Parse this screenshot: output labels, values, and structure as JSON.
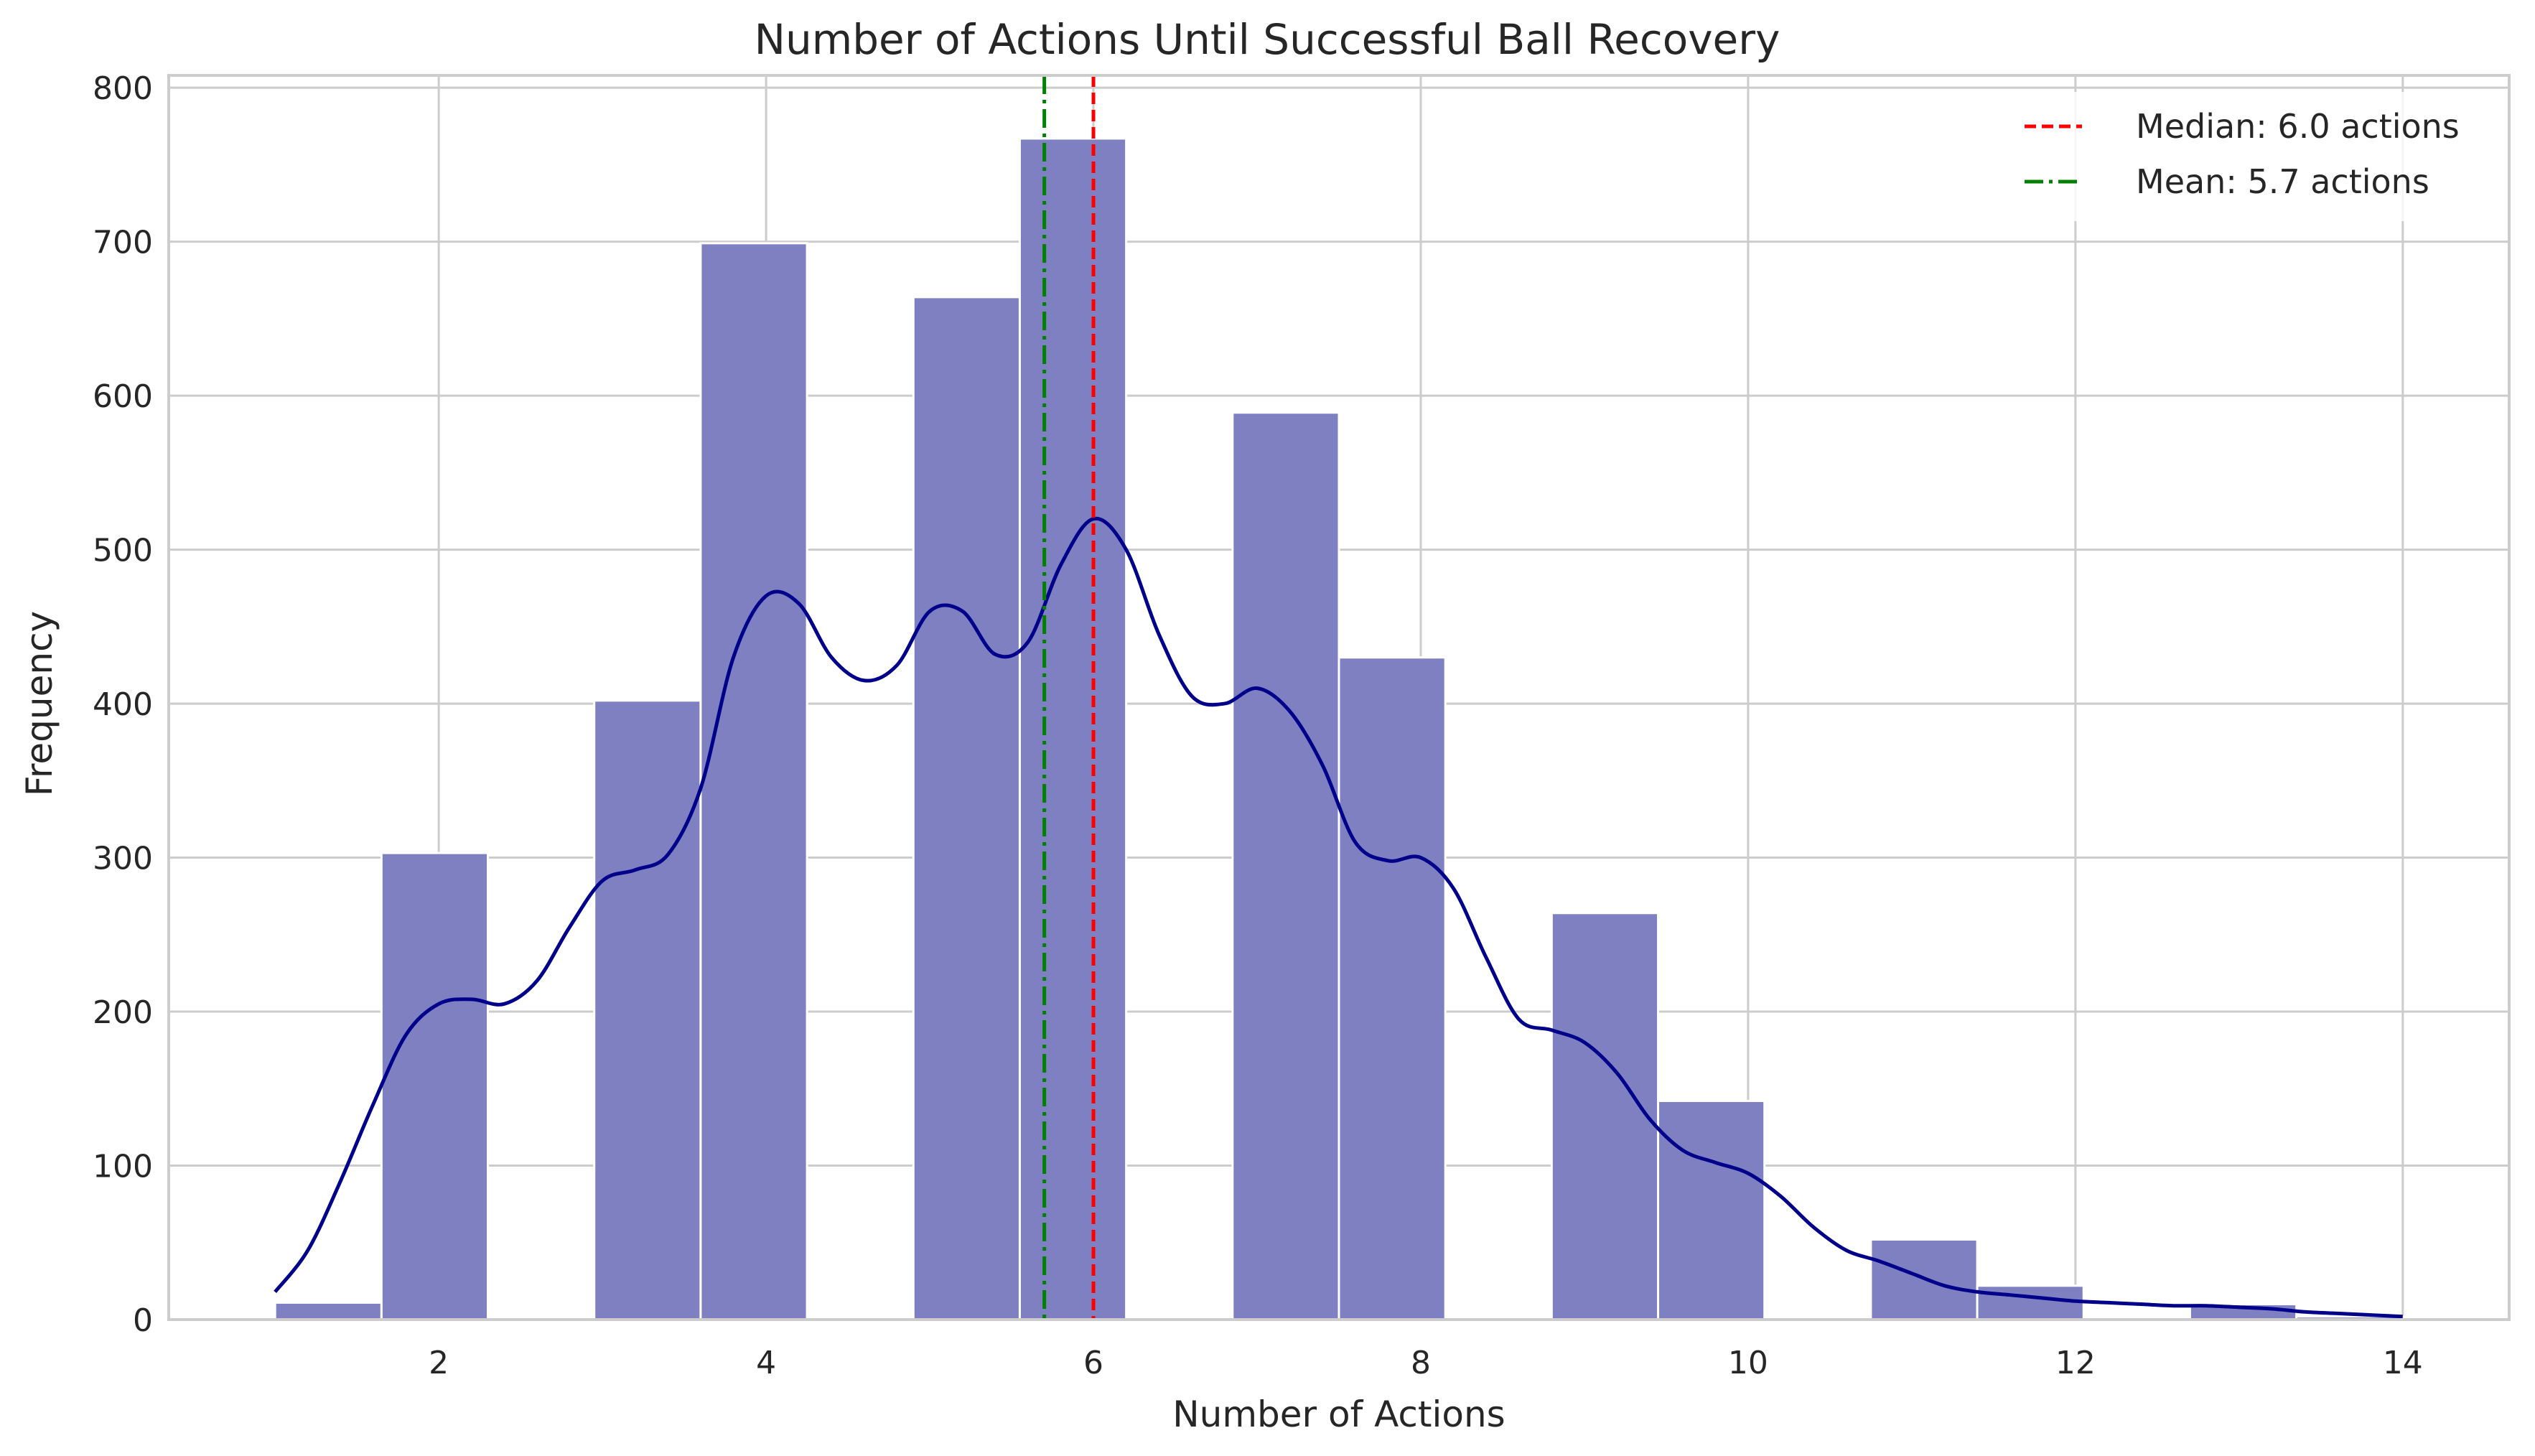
{
  "chart_data": {
    "type": "bar",
    "title": "Number of Actions Until Successful Ball Recovery",
    "xlabel": "Number of Actions",
    "ylabel": "Frequency",
    "xlim": [
      0.35,
      14.65
    ],
    "ylim": [
      0,
      808
    ],
    "xticks": [
      2,
      4,
      6,
      8,
      10,
      12,
      14
    ],
    "yticks": [
      0,
      100,
      200,
      300,
      400,
      500,
      600,
      700,
      800
    ],
    "grid": true,
    "legend_position": "top-right",
    "bin_width": 0.65,
    "bins": [
      {
        "start": 1.0,
        "value": 11
      },
      {
        "start": 1.65,
        "value": 303
      },
      {
        "start": 2.3,
        "value": 0
      },
      {
        "start": 2.95,
        "value": 402
      },
      {
        "start": 3.6,
        "value": 699
      },
      {
        "start": 4.25,
        "value": 0
      },
      {
        "start": 4.9,
        "value": 664
      },
      {
        "start": 5.55,
        "value": 767
      },
      {
        "start": 6.2,
        "value": 0
      },
      {
        "start": 6.85,
        "value": 589
      },
      {
        "start": 7.5,
        "value": 430
      },
      {
        "start": 8.15,
        "value": 0
      },
      {
        "start": 8.8,
        "value": 264
      },
      {
        "start": 9.45,
        "value": 142
      },
      {
        "start": 10.1,
        "value": 0
      },
      {
        "start": 10.75,
        "value": 52
      },
      {
        "start": 11.4,
        "value": 22
      },
      {
        "start": 12.05,
        "value": 0
      },
      {
        "start": 12.7,
        "value": 10
      },
      {
        "start": 13.35,
        "value": 2
      }
    ],
    "kde": {
      "x": [
        1.0,
        1.2,
        1.4,
        1.6,
        1.8,
        2.0,
        2.2,
        2.4,
        2.6,
        2.8,
        3.0,
        3.2,
        3.4,
        3.6,
        3.8,
        4.0,
        4.2,
        4.4,
        4.6,
        4.8,
        5.0,
        5.2,
        5.4,
        5.6,
        5.8,
        6.0,
        6.2,
        6.4,
        6.6,
        6.8,
        7.0,
        7.2,
        7.4,
        7.6,
        7.8,
        8.0,
        8.2,
        8.4,
        8.6,
        8.8,
        9.0,
        9.2,
        9.4,
        9.6,
        9.8,
        10.0,
        10.2,
        10.4,
        10.6,
        10.8,
        11.0,
        11.2,
        11.4,
        11.6,
        11.8,
        12.0,
        12.2,
        12.4,
        12.6,
        12.8,
        13.0,
        13.2,
        13.4,
        13.6,
        13.8,
        14.0
      ],
      "y": [
        18,
        45,
        90,
        140,
        185,
        205,
        208,
        205,
        220,
        255,
        285,
        292,
        302,
        345,
        430,
        470,
        465,
        430,
        415,
        425,
        460,
        460,
        432,
        440,
        490,
        520,
        500,
        445,
        405,
        400,
        410,
        395,
        360,
        310,
        298,
        300,
        280,
        235,
        195,
        188,
        180,
        160,
        130,
        110,
        102,
        95,
        80,
        60,
        45,
        38,
        30,
        22,
        18,
        16,
        14,
        12,
        11,
        10,
        9,
        9,
        8,
        7,
        5,
        4,
        3,
        2
      ]
    },
    "reference_lines": [
      {
        "name": "Median: 6.0 actions",
        "x": 6.0,
        "color": "#ff0000",
        "style": "dashed"
      },
      {
        "name": "Mean: 5.7 actions",
        "x": 5.7,
        "color": "#008000",
        "style": "dashdot"
      }
    ],
    "colors": {
      "bar_fill": "#7f80c2",
      "bar_stroke": "#ffffff",
      "kde_line": "#00008b",
      "grid": "#cccccc",
      "spine": "#cccccc",
      "text": "#262626"
    }
  }
}
